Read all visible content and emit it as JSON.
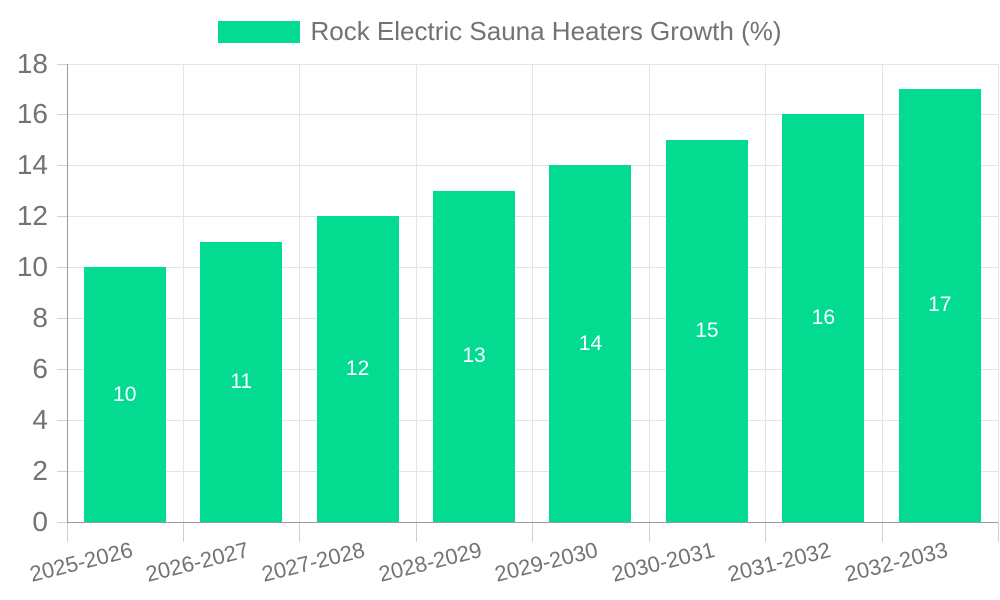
{
  "legend": {
    "label": "Rock Electric Sauna Heaters Growth (%)"
  },
  "chart_data": {
    "type": "bar",
    "title": "Rock Electric Sauna Heaters Growth (%)",
    "series_name": "Rock Electric Sauna Heaters Growth (%)",
    "categories": [
      "2025-2026",
      "2026-2027",
      "2027-2028",
      "2028-2029",
      "2029-2030",
      "2030-2031",
      "2031-2032",
      "2032-2033"
    ],
    "values": [
      10,
      11,
      12,
      13,
      14,
      15,
      16,
      17
    ],
    "bar_value_labels": [
      "10",
      "11",
      "12",
      "13",
      "14",
      "15",
      "16",
      "17"
    ],
    "xlabel": "",
    "ylabel": "",
    "ylim": [
      0,
      18
    ],
    "ytick_step": 2,
    "yticks": [
      0,
      2,
      4,
      6,
      8,
      10,
      12,
      14,
      16,
      18
    ],
    "grid": true,
    "legend_position": "top-center",
    "x_label_rotation_deg": -14,
    "colors": {
      "bar": "#03DC90",
      "bar_label_text": "#ffffff",
      "grid_line": "#e4e4e4",
      "axis_line": "#9a9a9a",
      "tick_line": "#cfcfcf",
      "axis_text": "#737373",
      "background": "#ffffff"
    }
  }
}
